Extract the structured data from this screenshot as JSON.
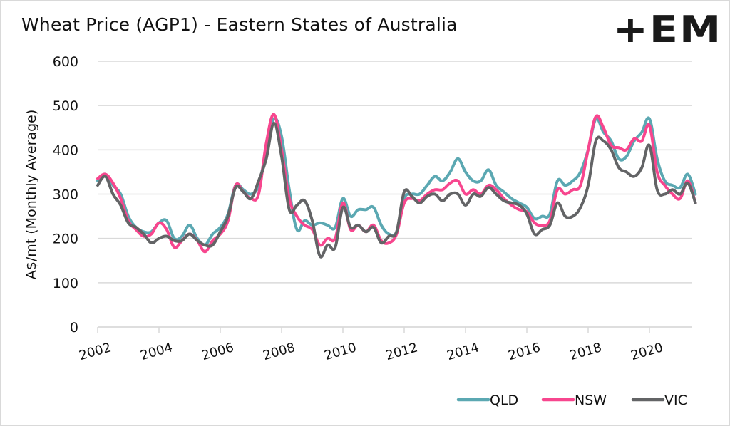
{
  "chart_data": {
    "type": "line",
    "title": "Wheat Price (AGP1) - Eastern States of Australia",
    "xlabel": "",
    "ylabel": "A$/mt (Monthly Average)",
    "ylim": [
      0,
      600
    ],
    "xlim": [
      2002,
      2021.5
    ],
    "yticks": [
      0,
      100,
      200,
      300,
      400,
      500,
      600
    ],
    "xticks": [
      "2002",
      "2004",
      "2006",
      "2008",
      "2010",
      "2012",
      "2014",
      "2016",
      "2018",
      "2020"
    ],
    "xtick_values": [
      2002,
      2004,
      2006,
      2008,
      2010,
      2012,
      2014,
      2016,
      2018,
      2020
    ],
    "grid": true,
    "legend_position": "bottom-right",
    "x": [
      2002.0,
      2002.25,
      2002.5,
      2002.75,
      2003.0,
      2003.25,
      2003.5,
      2003.75,
      2004.0,
      2004.25,
      2004.5,
      2004.75,
      2005.0,
      2005.25,
      2005.5,
      2005.75,
      2006.0,
      2006.25,
      2006.5,
      2006.75,
      2007.0,
      2007.25,
      2007.5,
      2007.75,
      2008.0,
      2008.25,
      2008.5,
      2008.75,
      2009.0,
      2009.25,
      2009.5,
      2009.75,
      2010.0,
      2010.25,
      2010.5,
      2010.75,
      2011.0,
      2011.25,
      2011.5,
      2011.75,
      2012.0,
      2012.25,
      2012.5,
      2012.75,
      2013.0,
      2013.25,
      2013.5,
      2013.75,
      2014.0,
      2014.25,
      2014.5,
      2014.75,
      2015.0,
      2015.25,
      2015.5,
      2015.75,
      2016.0,
      2016.25,
      2016.5,
      2016.75,
      2017.0,
      2017.25,
      2017.5,
      2017.75,
      2018.0,
      2018.25,
      2018.5,
      2018.75,
      2019.0,
      2019.25,
      2019.5,
      2019.75,
      2020.0,
      2020.25,
      2020.5,
      2020.75,
      2021.0,
      2021.25,
      2021.5
    ],
    "series": [
      {
        "name": "QLD",
        "color": "#5ba8b2",
        "values": [
          330,
          345,
          320,
          300,
          250,
          225,
          215,
          215,
          235,
          240,
          200,
          205,
          230,
          200,
          185,
          210,
          225,
          255,
          320,
          310,
          300,
          320,
          400,
          470,
          430,
          310,
          220,
          240,
          230,
          235,
          230,
          225,
          290,
          250,
          265,
          265,
          270,
          230,
          210,
          215,
          290,
          300,
          300,
          320,
          340,
          330,
          350,
          380,
          350,
          330,
          330,
          355,
          320,
          305,
          290,
          280,
          270,
          245,
          250,
          255,
          330,
          320,
          330,
          350,
          400,
          470,
          440,
          420,
          380,
          385,
          420,
          440,
          470,
          380,
          330,
          320,
          315,
          345,
          300
        ]
      },
      {
        "name": "NSW",
        "color": "#f7468e",
        "values": [
          335,
          345,
          325,
          290,
          240,
          220,
          205,
          210,
          235,
          220,
          180,
          195,
          210,
          195,
          170,
          195,
          210,
          240,
          320,
          305,
          290,
          300,
          415,
          480,
          400,
          290,
          250,
          230,
          220,
          185,
          200,
          200,
          280,
          220,
          230,
          215,
          230,
          195,
          190,
          210,
          280,
          290,
          285,
          300,
          310,
          310,
          325,
          330,
          300,
          310,
          300,
          320,
          310,
          290,
          275,
          265,
          260,
          235,
          230,
          240,
          310,
          300,
          310,
          320,
          400,
          475,
          450,
          410,
          405,
          400,
          425,
          420,
          455,
          350,
          320,
          300,
          290,
          330,
          280
        ]
      },
      {
        "name": "VIC",
        "color": "#636466",
        "values": [
          320,
          340,
          300,
          275,
          235,
          225,
          210,
          190,
          200,
          205,
          195,
          195,
          210,
          195,
          185,
          185,
          215,
          250,
          315,
          305,
          290,
          330,
          380,
          460,
          385,
          265,
          275,
          285,
          240,
          160,
          185,
          180,
          270,
          225,
          230,
          215,
          225,
          190,
          205,
          215,
          305,
          295,
          280,
          295,
          300,
          285,
          300,
          300,
          275,
          300,
          295,
          315,
          300,
          285,
          280,
          275,
          255,
          210,
          220,
          230,
          280,
          250,
          250,
          270,
          320,
          420,
          420,
          400,
          360,
          350,
          340,
          360,
          410,
          310,
          300,
          310,
          300,
          325,
          280
        ]
      }
    ]
  },
  "logo": {
    "text": "+EM"
  }
}
